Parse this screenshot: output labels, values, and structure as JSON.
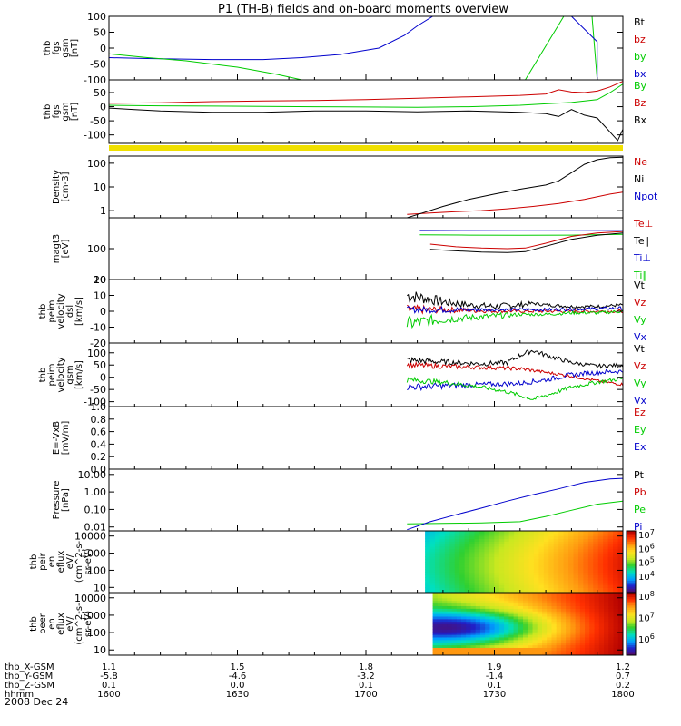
{
  "title": "P1 (TH-B) fields and on-board moments overview",
  "date_label": "2008 Dec 24",
  "colorbar_colors": [
    "#5a0a5a",
    "#2020c8",
    "#00a0ff",
    "#00e0c0",
    "#30d030",
    "#c8e820",
    "#ffe020",
    "#ff9a10",
    "#ff3000",
    "#b00000"
  ],
  "ephemeris": {
    "rows": [
      {
        "label": "thb_X-GSM",
        "values": [
          "1.1",
          "1.5",
          "1.8",
          "1.9",
          "1.2"
        ]
      },
      {
        "label": "thb_Y-GSM",
        "values": [
          "-5.8",
          "-4.6",
          "-3.2",
          "-1.4",
          "0.7"
        ]
      },
      {
        "label": "thb_Z-GSM",
        "values": [
          "0.1",
          "0.0",
          "0.1",
          "0.1",
          "0.2"
        ]
      },
      {
        "label": "hhmm",
        "values": [
          "1600",
          "1630",
          "1700",
          "1730",
          "1800"
        ]
      }
    ]
  },
  "chart_data": [
    {
      "type": "line",
      "ylabel": [
        "thb",
        "fgs",
        "gsm",
        "[nT]"
      ],
      "yticks": [
        "100",
        "50",
        "0",
        "-50",
        "-100"
      ],
      "ylim": [
        -100,
        100
      ],
      "legend": [
        {
          "name": "Bt",
          "color": "#000000"
        },
        {
          "name": "bz",
          "color": "#cc0000"
        },
        {
          "name": "by",
          "color": "#00cc00"
        },
        {
          "name": "bx",
          "color": "#0000cc"
        }
      ],
      "series": [
        {
          "name": "bx",
          "color": "#0000cc",
          "x": [
            1600,
            1615,
            1640,
            1660,
            1675,
            1690,
            1705,
            1715,
            1720,
            1726
          ],
          "y": [
            -30,
            -33,
            -36,
            -36,
            -30,
            -20,
            0,
            40,
            70,
            100
          ]
        },
        {
          "name": "by",
          "color": "#00cc00",
          "x": [
            1600,
            1615,
            1630,
            1650,
            1665,
            1675
          ],
          "y": [
            -18,
            -30,
            -40,
            -60,
            -82,
            -100
          ]
        },
        {
          "name": "by",
          "color": "#00cc00",
          "x": [
            1762,
            1777,
            1788,
            1790,
            1800
          ],
          "y": [
            -100,
            100,
            100,
            -100,
            -100
          ]
        },
        {
          "name": "bx",
          "color": "#0000cc",
          "x": [
            1780,
            1790,
            1790
          ],
          "y": [
            100,
            20,
            -100
          ]
        }
      ]
    },
    {
      "type": "line",
      "ylabel": [
        "thb",
        "fgs",
        "gsm",
        "[nT]"
      ],
      "yticks": [
        "50",
        "0",
        "-50",
        "-100"
      ],
      "ylim": [
        -130,
        95
      ],
      "legend": [
        {
          "name": "By",
          "color": "#00cc00"
        },
        {
          "name": "Bz",
          "color": "#cc0000"
        },
        {
          "name": "Bx",
          "color": "#000000"
        }
      ],
      "series": [
        {
          "name": "Bz",
          "color": "#cc0000",
          "x": [
            1600,
            1620,
            1640,
            1660,
            1680,
            1700,
            1720,
            1740,
            1760,
            1770,
            1775,
            1780,
            1785,
            1790,
            1795,
            1800
          ],
          "y": [
            12,
            14,
            18,
            20,
            22,
            25,
            30,
            35,
            40,
            45,
            60,
            52,
            50,
            55,
            70,
            90
          ]
        },
        {
          "name": "By",
          "color": "#00cc00",
          "x": [
            1600,
            1620,
            1640,
            1660,
            1680,
            1700,
            1720,
            1740,
            1760,
            1770,
            1780,
            1790,
            1795,
            1800
          ],
          "y": [
            5,
            3,
            2,
            1,
            0,
            -1,
            -2,
            0,
            5,
            10,
            15,
            25,
            50,
            80
          ]
        },
        {
          "name": "Bx",
          "color": "#000000",
          "x": [
            1600,
            1610,
            1620,
            1640,
            1660,
            1680,
            1700,
            1720,
            1740,
            1760,
            1770,
            1775,
            1780,
            1785,
            1790,
            1795,
            1798,
            1800
          ],
          "y": [
            -5,
            -10,
            -15,
            -20,
            -20,
            -15,
            -15,
            -18,
            -15,
            -20,
            -25,
            -35,
            -10,
            -30,
            -40,
            -90,
            -120,
            -80
          ]
        }
      ]
    },
    {
      "type": "line",
      "ylabel": [
        "Density",
        "[cm-3]"
      ],
      "yticks": [
        "100",
        "10",
        "1"
      ],
      "scale": "log",
      "ylim": [
        0.5,
        200
      ],
      "legend": [
        {
          "name": "Ne",
          "color": "#cc0000"
        },
        {
          "name": "Ni",
          "color": "#000000"
        },
        {
          "name": "Npot",
          "color": "#0000cc"
        }
      ],
      "series": [
        {
          "name": "Ne",
          "color": "#cc0000",
          "x": [
            1716,
            1725,
            1735,
            1745,
            1755,
            1765,
            1775,
            1785,
            1795,
            1800
          ],
          "y": [
            0.7,
            0.8,
            0.9,
            1.0,
            1.2,
            1.5,
            2.0,
            3.0,
            5.0,
            6.0
          ]
        },
        {
          "name": "Ni",
          "color": "#000000",
          "x": [
            1716,
            1722,
            1730,
            1740,
            1750,
            1760,
            1770,
            1775,
            1780,
            1785,
            1790,
            1795,
            1800
          ],
          "y": [
            0.5,
            0.8,
            1.5,
            3.0,
            5.0,
            8.0,
            12.0,
            18.0,
            40.0,
            90.0,
            140.0,
            170.0,
            180.0
          ]
        }
      ]
    },
    {
      "type": "line",
      "ylabel": [
        "magt3",
        "[eV]"
      ],
      "yticks": [
        "100",
        "10"
      ],
      "scale": "log",
      "ylim": [
        10,
        1000
      ],
      "legend": [
        {
          "name": "Te⊥",
          "color": "#cc0000"
        },
        {
          "name": "Te‖",
          "color": "#000000"
        },
        {
          "name": "Ti⊥",
          "color": "#0000cc"
        },
        {
          "name": "Ti‖",
          "color": "#00cc00"
        }
      ],
      "series": [
        {
          "name": "Ti⊥",
          "color": "#0000cc",
          "x": [
            1721,
            1740,
            1760,
            1780,
            1800
          ],
          "y": [
            390,
            385,
            380,
            380,
            385
          ]
        },
        {
          "name": "Ti‖",
          "color": "#00cc00",
          "x": [
            1721,
            1740,
            1760,
            1780,
            1800
          ],
          "y": [
            280,
            275,
            270,
            275,
            290
          ]
        },
        {
          "name": "Te⊥",
          "color": "#cc0000",
          "x": [
            1725,
            1735,
            1745,
            1755,
            1762,
            1770,
            1780,
            1790,
            1800
          ],
          "y": [
            140,
            115,
            105,
            100,
            105,
            150,
            250,
            320,
            360
          ]
        },
        {
          "name": "Te‖",
          "color": "#000000",
          "x": [
            1725,
            1735,
            1745,
            1755,
            1762,
            1770,
            1780,
            1790,
            1800
          ],
          "y": [
            95,
            85,
            78,
            75,
            80,
            120,
            200,
            270,
            320
          ]
        }
      ]
    },
    {
      "type": "line",
      "ylabel": [
        "thb",
        "peim",
        "velocity",
        "dsl",
        "[km/s]"
      ],
      "yticks": [
        "20",
        "10",
        "0",
        "-10",
        "-20"
      ],
      "ylim": [
        -20,
        20
      ],
      "noisy": true,
      "legend": [
        {
          "name": "Vt",
          "color": "#000000"
        },
        {
          "name": "Vz",
          "color": "#cc0000"
        },
        {
          "name": "Vy",
          "color": "#00cc00"
        },
        {
          "name": "Vx",
          "color": "#0000cc"
        }
      ],
      "series": [
        {
          "name": "Vt",
          "color": "#000000",
          "x": [
            1716,
            1720,
            1730,
            1740,
            1750,
            1760,
            1765,
            1770,
            1780,
            1790,
            1800
          ],
          "y": [
            10,
            9,
            6,
            4,
            3,
            4,
            5,
            4,
            3,
            3,
            4
          ],
          "noise": [
            5,
            4,
            3,
            2,
            2,
            2,
            1,
            1,
            1,
            1,
            1
          ]
        },
        {
          "name": "Vz",
          "color": "#cc0000",
          "x": [
            1716,
            1730,
            1750,
            1770,
            1800
          ],
          "y": [
            1,
            1,
            0,
            0,
            0
          ],
          "noise": [
            3,
            2,
            1,
            1,
            1
          ]
        },
        {
          "name": "Vx",
          "color": "#0000cc",
          "x": [
            1716,
            1730,
            1750,
            1770,
            1800
          ],
          "y": [
            1,
            1,
            1,
            1,
            2
          ],
          "noise": [
            2,
            2,
            1,
            1,
            1
          ]
        },
        {
          "name": "Vy",
          "color": "#00cc00",
          "x": [
            1716,
            1720,
            1730,
            1740,
            1750,
            1760,
            1770,
            1780,
            1790,
            1800
          ],
          "y": [
            -8,
            -7,
            -5,
            -4,
            -3,
            -2,
            -2,
            -1,
            -1,
            0
          ],
          "noise": [
            5,
            4,
            3,
            2,
            2,
            1,
            1,
            1,
            1,
            1
          ]
        }
      ]
    },
    {
      "type": "line",
      "ylabel": [
        "thb",
        "peim",
        "velocity",
        "gsm",
        "[km/s]"
      ],
      "yticks": [
        "100",
        "50",
        "0",
        "-50",
        "-100"
      ],
      "ylim": [
        -120,
        140
      ],
      "noisy": true,
      "legend": [
        {
          "name": "Vt",
          "color": "#000000"
        },
        {
          "name": "Vz",
          "color": "#cc0000"
        },
        {
          "name": "Vy",
          "color": "#00cc00"
        },
        {
          "name": "Vx",
          "color": "#0000cc"
        }
      ],
      "series": [
        {
          "name": "Vt",
          "color": "#000000",
          "x": [
            1716,
            1725,
            1735,
            1745,
            1755,
            1760,
            1765,
            1770,
            1780,
            1790,
            1800
          ],
          "y": [
            70,
            65,
            60,
            55,
            60,
            90,
            110,
            90,
            60,
            45,
            50
          ],
          "noise": [
            15,
            12,
            10,
            10,
            10,
            10,
            10,
            10,
            8,
            8,
            8
          ]
        },
        {
          "name": "Vz",
          "color": "#cc0000",
          "x": [
            1716,
            1730,
            1745,
            1760,
            1770,
            1780,
            1790,
            1800
          ],
          "y": [
            50,
            45,
            40,
            35,
            20,
            5,
            -15,
            -30
          ],
          "noise": [
            12,
            10,
            8,
            8,
            6,
            6,
            6,
            6
          ]
        },
        {
          "name": "Vx",
          "color": "#0000cc",
          "x": [
            1716,
            1730,
            1745,
            1760,
            1770,
            1780,
            1790,
            1800
          ],
          "y": [
            -40,
            -35,
            -30,
            -25,
            -10,
            10,
            20,
            25
          ],
          "noise": [
            15,
            12,
            10,
            10,
            10,
            10,
            10,
            10
          ]
        },
        {
          "name": "Vy",
          "color": "#00cc00",
          "x": [
            1716,
            1730,
            1745,
            1755,
            1765,
            1770,
            1780,
            1790,
            1800
          ],
          "y": [
            -10,
            -20,
            -40,
            -60,
            -90,
            -75,
            -40,
            -20,
            -5
          ],
          "noise": [
            12,
            10,
            8,
            8,
            8,
            8,
            8,
            8,
            8
          ]
        }
      ]
    },
    {
      "type": "line",
      "ylabel": [
        "E=-VxB",
        "[mV/m]"
      ],
      "yticks": [
        "1.0",
        "0.8",
        "0.6",
        "0.4",
        "0.2",
        "0.0"
      ],
      "ylim": [
        0,
        1
      ],
      "legend": [
        {
          "name": "Ez",
          "color": "#cc0000"
        },
        {
          "name": "Ey",
          "color": "#00cc00"
        },
        {
          "name": "Ex",
          "color": "#0000cc"
        }
      ],
      "series": []
    },
    {
      "type": "line",
      "ylabel": [
        "Pressure",
        "[nPa]"
      ],
      "yticks": [
        "10.00",
        "1.00",
        "0.10",
        "0.01"
      ],
      "scale": "log",
      "ylim": [
        0.006,
        20
      ],
      "legend": [
        {
          "name": "Pt",
          "color": "#000000"
        },
        {
          "name": "Pb",
          "color": "#cc0000"
        },
        {
          "name": "Pe",
          "color": "#00cc00"
        },
        {
          "name": "Pi",
          "color": "#0000cc"
        }
      ],
      "series": [
        {
          "name": "Pe",
          "color": "#00cc00",
          "x": [
            1716,
            1730,
            1745,
            1760,
            1770,
            1780,
            1790,
            1800
          ],
          "y": [
            0.015,
            0.016,
            0.017,
            0.02,
            0.04,
            0.09,
            0.2,
            0.3
          ]
        },
        {
          "name": "Pi",
          "color": "#0000cc",
          "x": [
            1716,
            1725,
            1735,
            1745,
            1755,
            1765,
            1775,
            1785,
            1795,
            1800
          ],
          "y": [
            0.007,
            0.02,
            0.05,
            0.12,
            0.3,
            0.7,
            1.5,
            3.5,
            5.5,
            6.0
          ]
        }
      ]
    },
    {
      "type": "heatmap",
      "ylabel": [
        "thb",
        "peir",
        "en",
        "eflux",
        "eV/",
        "(cm^2-s-",
        "sr-eV)"
      ],
      "yticks": [
        "10000",
        "1000",
        "100",
        "10"
      ],
      "scale": "log",
      "ylim": [
        5,
        20000
      ],
      "data_start_x": 1723,
      "colorbar": {
        "ticks": [
          "10^7",
          "10^6",
          "10^5",
          "10^4"
        ]
      }
    },
    {
      "type": "heatmap",
      "ylabel": [
        "thb",
        "peer",
        "en",
        "eflux",
        "eV/",
        "(cm^2-s-",
        "sr-eV)"
      ],
      "yticks": [
        "10000",
        "1000",
        "100",
        "10"
      ],
      "scale": "log",
      "ylim": [
        5,
        20000
      ],
      "data_start_x": 1726,
      "colorbar": {
        "ticks": [
          "10^8",
          "10^7",
          "10^6"
        ]
      }
    }
  ]
}
